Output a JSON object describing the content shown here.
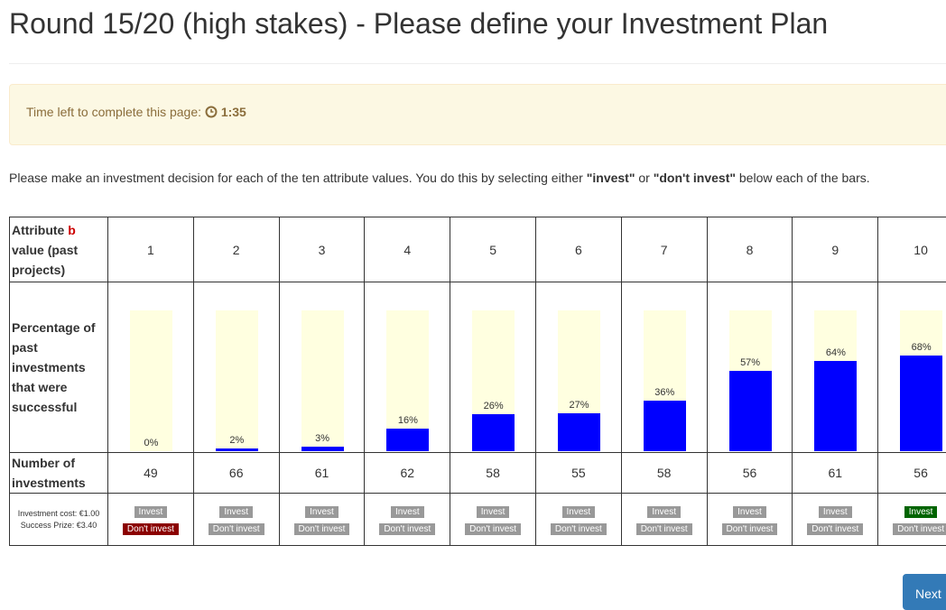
{
  "header": {
    "title": "Round 15/20 (high stakes) - Please define your Investment Plan"
  },
  "timer": {
    "label": "Time left to complete this page:",
    "time": "1:35"
  },
  "instructions": {
    "parts": [
      "Please make an investment decision for each of the ten attribute values. You do this by selecting either ",
      "\"invest\"",
      " or ",
      "\"don't invest\"",
      " below each of the bars."
    ]
  },
  "table": {
    "attribute_label": {
      "text": "Attribute",
      "var": "b",
      "rest": "value (past projects)"
    },
    "percentage_label": "Percentage of past investments that were successful",
    "count_label": "Number of investments",
    "cost_label": "Investment cost: €1.00",
    "prize_label": "Success Prize: €3.40",
    "button_labels": {
      "invest": "Invest",
      "dont_invest": "Don't invest"
    },
    "attribute_values": [
      1,
      2,
      3,
      4,
      5,
      6,
      7,
      8,
      9,
      10
    ],
    "bars": {
      "type": "bar",
      "values": [
        0,
        2,
        3,
        16,
        26,
        27,
        36,
        57,
        64,
        68
      ],
      "value_labels": [
        "0%",
        "2%",
        "3%",
        "16%",
        "26%",
        "27%",
        "36%",
        "57%",
        "64%",
        "68%"
      ],
      "ylim": [
        0,
        100
      ],
      "color": "#0000ff",
      "background": "#ffffe0"
    },
    "counts": [
      49,
      66,
      61,
      62,
      58,
      55,
      58,
      56,
      61,
      56
    ],
    "decisions": [
      "dont_invest",
      null,
      null,
      null,
      null,
      null,
      null,
      null,
      null,
      "invest"
    ]
  },
  "next_button": "Next"
}
